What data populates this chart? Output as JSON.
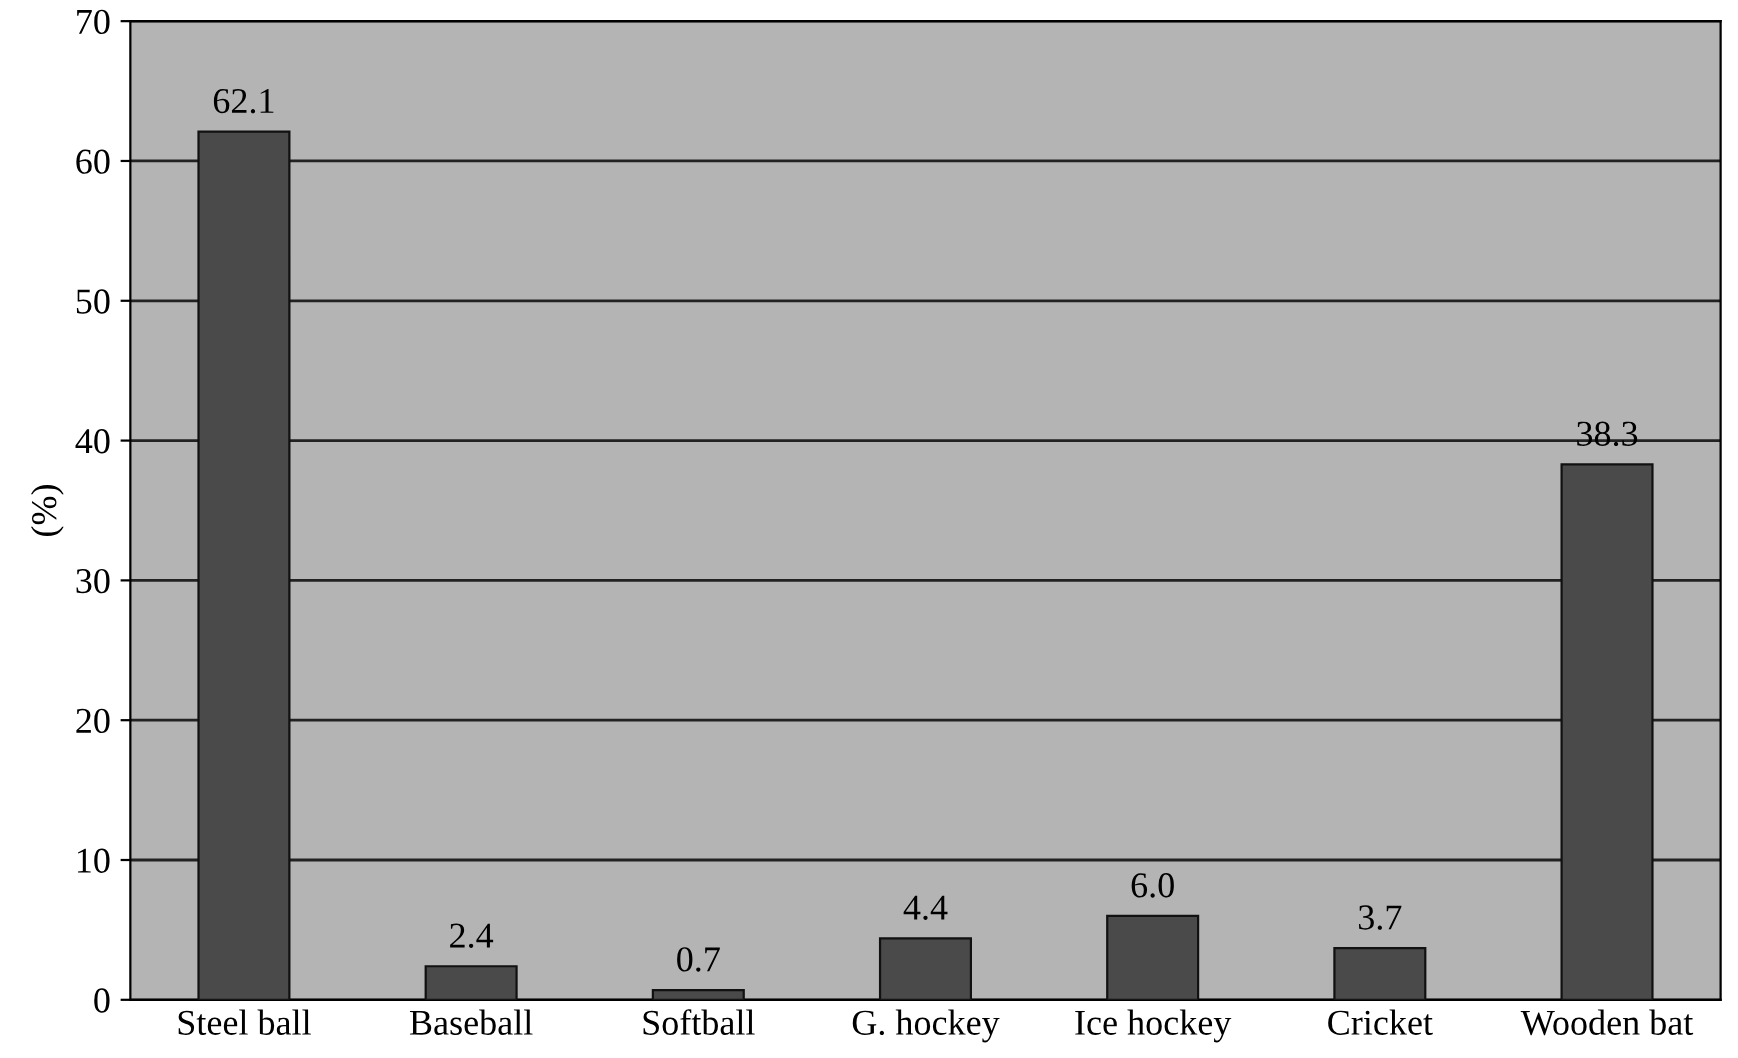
{
  "chart_data": {
    "type": "bar",
    "ylabel": "(%)",
    "categories": [
      "Steel ball",
      "Baseball",
      "Softball",
      "G. hockey",
      "Ice hockey",
      "Cricket",
      "Wooden bat"
    ],
    "values": [
      62.1,
      2.4,
      0.7,
      4.4,
      6.0,
      3.7,
      38.3
    ],
    "value_labels": [
      "62.1",
      "2.4",
      "0.7",
      "4.4",
      "6.0",
      "3.7",
      "38.3"
    ],
    "color": "#4a4a4a",
    "ylim": [
      0,
      70
    ],
    "yticks": [
      0,
      10,
      20,
      30,
      40,
      50,
      60,
      70
    ],
    "grid": "y"
  }
}
